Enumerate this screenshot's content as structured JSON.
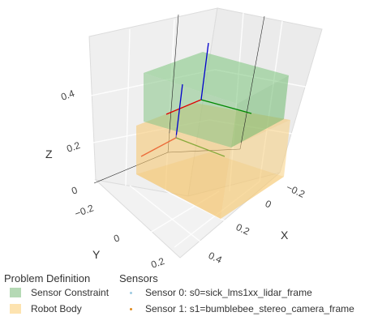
{
  "axes": {
    "x": {
      "title": "X",
      "ticks": [
        "0.4",
        "0.2",
        "0",
        "−0.2"
      ]
    },
    "y": {
      "title": "Y",
      "ticks": [
        "0.2",
        "0",
        "−0.2"
      ]
    },
    "z": {
      "title": "Z",
      "ticks": [
        "0.4",
        "0.2",
        "0"
      ]
    }
  },
  "legend": {
    "groups": [
      {
        "title": "Problem Definition",
        "items": [
          {
            "label": "Sensor Constraint",
            "color": "#b5d9b5"
          },
          {
            "label": "Robot Body",
            "color": "#fde3b0"
          }
        ]
      },
      {
        "title": "Sensors",
        "items": [
          {
            "label": "Sensor 0: s0=sick_lms1xx_lidar_frame",
            "color": "#9ecae1"
          },
          {
            "label": "Sensor 1: s1=bumblebee_stereo_camera_frame",
            "color": "#e08a1e"
          }
        ]
      }
    ]
  },
  "colors": {
    "sensor_constraint": "#7cc47c",
    "robot_body": "#f5c56a",
    "frame_x": "#e00000",
    "frame_y": "#008800",
    "frame_z": "#0000cc"
  }
}
